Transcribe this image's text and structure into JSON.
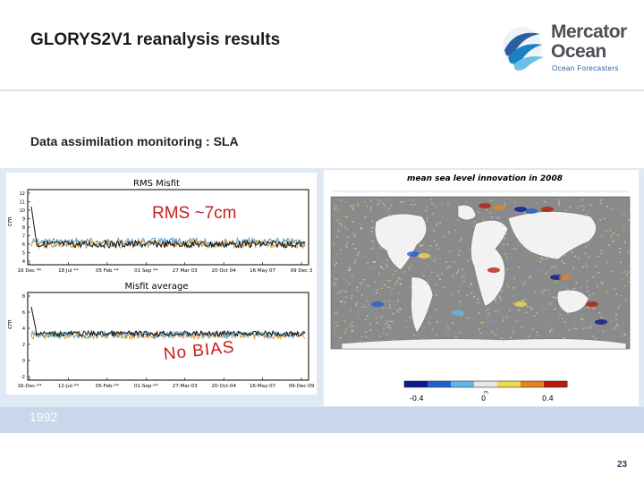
{
  "header": {
    "title": "GLORYS2V1 reanalysis results",
    "logo": {
      "line1": "Mercator",
      "line2": "Ocean",
      "tagline": "Ocean Forecasters",
      "icon": "globe-swirl-icon"
    }
  },
  "subtitle": "Data assimilation monitoring : SLA",
  "left_panel": {
    "top_chart": {
      "title": "RMS Misfit",
      "ylabel": "cm",
      "y_ticks": [
        "12",
        "11",
        "10",
        "9",
        "8",
        "7",
        "6",
        "5",
        "4"
      ],
      "x_ticks": [
        "16 Dec **",
        "18 Jul **",
        "05 Feb **",
        "01 Sep **",
        "27 Mar 03",
        "20 Oct 04",
        "16 May 07",
        "09 Dec 3"
      ]
    },
    "bottom_chart": {
      "title": "Misfit average",
      "ylabel": "cm",
      "y_ticks": [
        "8",
        "6",
        "4",
        "2",
        "0",
        "-2"
      ],
      "x_ticks": [
        "16-Dec-**",
        "12-Jul-**",
        "05-Feb-**",
        "01-Sep-**",
        "27-Mar-03",
        "20-Oct-04",
        "16-May-07",
        "09-Dec-09"
      ]
    },
    "annotations": {
      "rms": "RMS ~7cm",
      "bias": "No BIAS"
    }
  },
  "right_panel": {
    "map_title": "mean sea level innovation in 2008",
    "colorbar_ticks": [
      "-0.4",
      "0",
      "0.4"
    ],
    "colorbar_unit": "m",
    "colorbar_colors": [
      "#0a1a8c",
      "#1f5fd6",
      "#5fb8e8",
      "#e6e6e6",
      "#f0d84a",
      "#e8801e",
      "#b81a0e"
    ]
  },
  "year_label": "1992",
  "page_number": "23",
  "colors": {
    "accent_red": "#c81e1e",
    "band_blue": "#dfe9f4",
    "logo_blue": "#2d5f9e"
  }
}
